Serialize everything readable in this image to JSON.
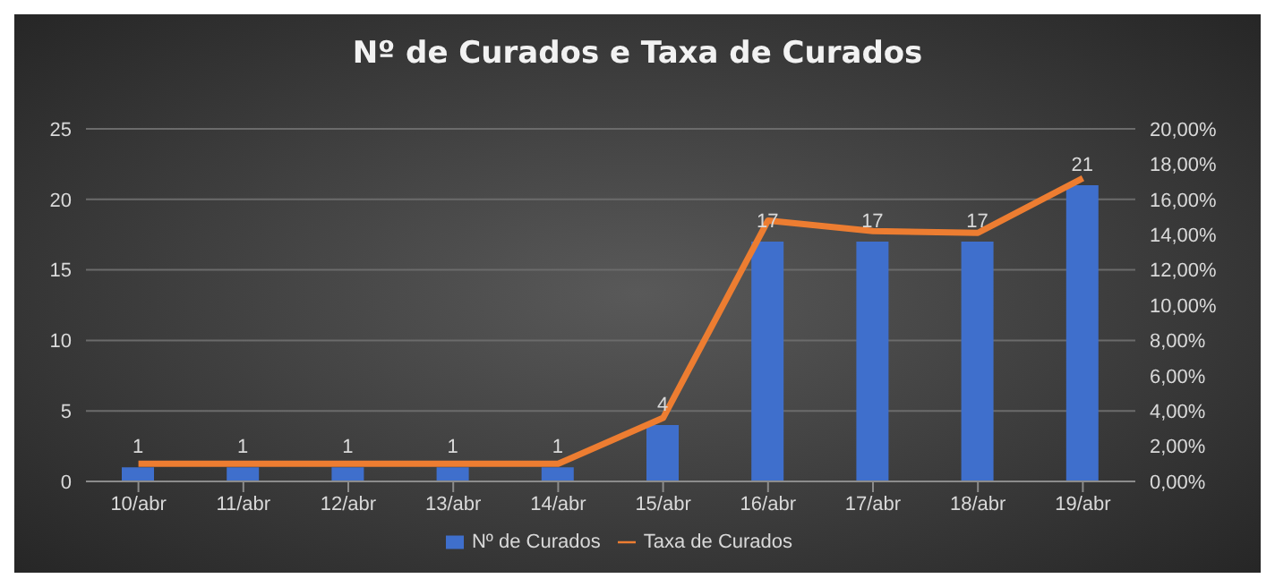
{
  "chart_data": {
    "type": "bar",
    "title": "Nº de Curados e Taxa de Curados",
    "categories": [
      "10/abr",
      "11/abr",
      "12/abr",
      "13/abr",
      "14/abr",
      "15/abr",
      "16/abr",
      "17/abr",
      "18/abr",
      "19/abr"
    ],
    "series": [
      {
        "name": "Nº de Curados",
        "color": "#3f6fcc",
        "values": [
          1,
          1,
          1,
          1,
          1,
          4,
          17,
          17,
          17,
          21
        ],
        "value_labels": [
          "1",
          "1",
          "1",
          "1",
          "1",
          "4",
          "17",
          "17",
          "17",
          "21"
        ]
      },
      {
        "name": "Taxa de Curados",
        "type": "line",
        "axis": "y2",
        "color": "#ed7d31",
        "values": [
          1.0,
          1.0,
          1.0,
          1.0,
          1.0,
          3.6,
          14.8,
          14.2,
          14.1,
          17.2
        ]
      }
    ],
    "ylim": [
      0,
      25
    ],
    "yticks": [
      0,
      5,
      10,
      15,
      20,
      25
    ],
    "y2lim": [
      0,
      20
    ],
    "y2ticks": [
      {
        "value": 0,
        "label": "0,00%"
      },
      {
        "value": 2,
        "label": "2,00%"
      },
      {
        "value": 4,
        "label": "4,00%"
      },
      {
        "value": 6,
        "label": "6,00%"
      },
      {
        "value": 8,
        "label": "8,00%"
      },
      {
        "value": 10,
        "label": "10,00%"
      },
      {
        "value": 12,
        "label": "12,00%"
      },
      {
        "value": 14,
        "label": "14,00%"
      },
      {
        "value": 16,
        "label": "16,00%"
      },
      {
        "value": 18,
        "label": "18,00%"
      },
      {
        "value": 20,
        "label": "20,00%"
      }
    ],
    "grid": "y",
    "legend": "bottom",
    "marker": "none",
    "line_style": "solid"
  }
}
